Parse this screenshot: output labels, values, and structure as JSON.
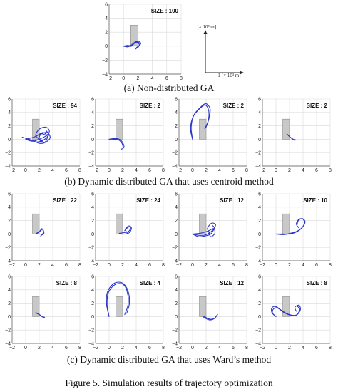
{
  "captions": {
    "a": "(a) Non-distributed GA",
    "b": "(b) Dynamic distributed GA that uses centroid method",
    "c": "(c) Dynamic distributed GA that uses Ward’s method",
    "figure": "Figure 5. Simulation results of trajectory optimization"
  },
  "axis_key": {
    "y_label": "η [× 10³ m]",
    "x_label": "ξ [× 10³ m]"
  },
  "colors": {
    "trajectory": "#2b35c8",
    "obstacle_fill": "#c8c8c8",
    "obstacle_stroke": "#8c8c8c",
    "grid": "#d9d9d9"
  },
  "chart_data": [
    {
      "id": "a",
      "type": "line",
      "title": "SIZE : 100",
      "xlim": [
        -2,
        8
      ],
      "ylim": [
        -4,
        6
      ],
      "grid": true,
      "xticks": [
        -2,
        0,
        2,
        4,
        6,
        8
      ],
      "yticks": [
        -4,
        -2,
        0,
        2,
        4,
        6
      ],
      "obstacle": {
        "x": [
          1,
          2
        ],
        "y": [
          0,
          3
        ]
      },
      "series": [
        {
          "x": [
            0.0,
            0.5,
            1.0,
            1.5,
            2.0,
            2.3,
            2.1,
            1.7
          ],
          "y": [
            0.0,
            0.1,
            0.1,
            0.5,
            0.6,
            0.3,
            0.0,
            -0.4
          ]
        },
        {
          "x": [
            0.0,
            0.6,
            1.2,
            1.6,
            2.1,
            2.4,
            2.2,
            1.8
          ],
          "y": [
            0.0,
            -0.1,
            0.2,
            0.6,
            0.7,
            0.4,
            0.1,
            -0.2
          ]
        },
        {
          "x": [
            0.0,
            0.5,
            1.1,
            1.5,
            1.9,
            2.2,
            2.0
          ],
          "y": [
            0.0,
            0.0,
            0.0,
            0.4,
            0.5,
            0.2,
            -0.2
          ]
        }
      ]
    },
    {
      "id": "b1",
      "type": "line",
      "title": "SIZE : 94",
      "xlim": [
        -2,
        8
      ],
      "ylim": [
        -4,
        6
      ],
      "grid": true,
      "xticks": [
        -2,
        0,
        2,
        4,
        6,
        8
      ],
      "yticks": [
        -4,
        -2,
        0,
        2,
        4,
        6
      ],
      "obstacle": {
        "x": [
          1,
          2
        ],
        "y": [
          0,
          3
        ]
      },
      "series": [
        {
          "x": [
            0.0,
            1.0,
            2.0,
            3.0,
            3.5,
            3.0,
            2.0,
            1.5,
            2.5
          ],
          "y": [
            0.0,
            -0.3,
            0.0,
            0.5,
            1.2,
            1.8,
            1.5,
            0.5,
            -0.3
          ]
        },
        {
          "x": [
            0.0,
            1.2,
            2.2,
            3.2,
            3.6,
            2.8,
            2.0,
            2.3,
            3.0
          ],
          "y": [
            0.0,
            0.3,
            0.8,
            1.0,
            0.2,
            -0.5,
            0.0,
            0.8,
            0.6
          ]
        },
        {
          "x": [
            0.0,
            1.0,
            2.0,
            2.8,
            3.2,
            2.6,
            1.8
          ],
          "y": [
            0.0,
            -0.2,
            -0.6,
            -0.5,
            0.4,
            1.0,
            0.6
          ]
        },
        {
          "x": [
            -0.5,
            0.5,
            1.5,
            2.5,
            3.4,
            3.0
          ],
          "y": [
            0.3,
            0.0,
            -0.4,
            -0.2,
            0.6,
            1.3
          ]
        }
      ]
    },
    {
      "id": "b2",
      "type": "line",
      "title": "SIZE : 2",
      "xlim": [
        -2,
        8
      ],
      "ylim": [
        -4,
        6
      ],
      "grid": true,
      "xticks": [
        -2,
        0,
        2,
        4,
        6,
        8
      ],
      "yticks": [
        -4,
        -2,
        0,
        2,
        4,
        6
      ],
      "obstacle": {
        "x": [
          1,
          2
        ],
        "y": [
          0,
          3
        ]
      },
      "series": [
        {
          "x": [
            0.0,
            0.8,
            1.5,
            2.0,
            2.2,
            1.8
          ],
          "y": [
            0.0,
            0.1,
            0.0,
            -0.5,
            -1.2,
            -1.5
          ]
        },
        {
          "x": [
            0.0,
            0.7,
            1.4,
            1.9,
            2.1
          ],
          "y": [
            0.0,
            0.0,
            -0.1,
            -0.6,
            -1.3
          ]
        }
      ]
    },
    {
      "id": "b3",
      "type": "line",
      "title": "SIZE : 2",
      "xlim": [
        -2,
        8
      ],
      "ylim": [
        -4,
        6
      ],
      "grid": true,
      "xticks": [
        -2,
        0,
        2,
        4,
        6,
        8
      ],
      "yticks": [
        -4,
        -2,
        0,
        2,
        4,
        6
      ],
      "obstacle": {
        "x": [
          1,
          2
        ],
        "y": [
          0,
          3
        ]
      },
      "series": [
        {
          "x": [
            0.0,
            -0.2,
            0.2,
            1.2,
            2.0,
            2.6,
            2.4,
            2.0
          ],
          "y": [
            0.0,
            1.8,
            3.6,
            4.8,
            5.3,
            4.5,
            3.0,
            1.8
          ]
        },
        {
          "x": [
            0.0,
            -0.3,
            0.1,
            1.1,
            1.9,
            2.4,
            2.3,
            1.8
          ],
          "y": [
            0.0,
            1.6,
            3.4,
            4.6,
            5.1,
            4.2,
            2.7,
            1.6
          ]
        }
      ]
    },
    {
      "id": "b4",
      "type": "line",
      "title": "SIZE : 2",
      "xlim": [
        -2,
        8
      ],
      "ylim": [
        -4,
        6
      ],
      "grid": true,
      "xticks": [
        -2,
        0,
        2,
        4,
        6,
        8
      ],
      "yticks": [
        -4,
        -2,
        0,
        2,
        4,
        6
      ],
      "obstacle": {
        "x": [
          1,
          2
        ],
        "y": [
          0,
          3
        ]
      },
      "series": [
        {
          "x": [
            1.6,
            2.0,
            2.4,
            2.8
          ],
          "y": [
            0.8,
            0.4,
            0.1,
            -0.2
          ]
        },
        {
          "x": [
            1.7,
            2.1,
            2.5,
            2.9
          ],
          "y": [
            0.7,
            0.3,
            0.0,
            -0.1
          ]
        }
      ]
    },
    {
      "id": "c1",
      "type": "line",
      "title": "SIZE : 22",
      "xlim": [
        -2,
        8
      ],
      "ylim": [
        -4,
        6
      ],
      "grid": true,
      "xticks": [
        -2,
        0,
        2,
        4,
        6,
        8
      ],
      "yticks": [
        -4,
        -2,
        0,
        2,
        4,
        6
      ],
      "obstacle": {
        "x": [
          1,
          2
        ],
        "y": [
          0,
          3
        ]
      },
      "series": [
        {
          "x": [
            1.5,
            2.0,
            2.4,
            2.6,
            2.2
          ],
          "y": [
            0.0,
            0.3,
            0.8,
            0.2,
            -0.3
          ]
        },
        {
          "x": [
            1.6,
            2.1,
            2.5,
            2.7,
            2.3
          ],
          "y": [
            0.1,
            0.4,
            0.7,
            0.1,
            -0.2
          ]
        }
      ]
    },
    {
      "id": "c2",
      "type": "line",
      "title": "SIZE : 24",
      "xlim": [
        -2,
        8
      ],
      "ylim": [
        -4,
        6
      ],
      "grid": true,
      "xticks": [
        -2,
        0,
        2,
        4,
        6,
        8
      ],
      "yticks": [
        -4,
        -2,
        0,
        2,
        4,
        6
      ],
      "obstacle": {
        "x": [
          1,
          2
        ],
        "y": [
          0,
          3
        ]
      },
      "series": [
        {
          "x": [
            1.5,
            2.3,
            3.0,
            3.3,
            2.9,
            2.4,
            2.7
          ],
          "y": [
            0.0,
            0.0,
            0.2,
            0.9,
            1.2,
            0.7,
            0.1
          ]
        },
        {
          "x": [
            1.5,
            2.2,
            2.9,
            3.2,
            2.8,
            2.3
          ],
          "y": [
            0.1,
            0.2,
            0.4,
            1.0,
            1.0,
            0.5
          ]
        }
      ]
    },
    {
      "id": "c3",
      "type": "line",
      "title": "SIZE : 12",
      "xlim": [
        -2,
        8
      ],
      "ylim": [
        -4,
        6
      ],
      "grid": true,
      "xticks": [
        -2,
        0,
        2,
        4,
        6,
        8
      ],
      "yticks": [
        -4,
        -2,
        0,
        2,
        4,
        6
      ],
      "obstacle": {
        "x": [
          1,
          2
        ],
        "y": [
          0,
          3
        ]
      },
      "series": [
        {
          "x": [
            0.0,
            1.0,
            2.0,
            3.0,
            3.4,
            2.8,
            2.2,
            2.6
          ],
          "y": [
            0.0,
            -0.2,
            -0.1,
            0.6,
            1.4,
            1.6,
            0.8,
            0.1
          ]
        },
        {
          "x": [
            0.0,
            1.1,
            2.2,
            3.1,
            3.3,
            2.7,
            2.4
          ],
          "y": [
            0.0,
            0.1,
            0.4,
            0.8,
            0.1,
            -0.4,
            0.3
          ]
        },
        {
          "x": [
            0.0,
            0.9,
            1.8,
            2.7,
            3.2,
            2.9
          ],
          "y": [
            0.0,
            -0.4,
            -0.3,
            0.0,
            0.9,
            1.3
          ]
        }
      ]
    },
    {
      "id": "c4",
      "type": "line",
      "title": "SIZE : 10",
      "xlim": [
        -2,
        8
      ],
      "ylim": [
        -4,
        6
      ],
      "grid": true,
      "xticks": [
        -2,
        0,
        2,
        4,
        6,
        8
      ],
      "yticks": [
        -4,
        -2,
        0,
        2,
        4,
        6
      ],
      "obstacle": {
        "x": [
          1,
          2
        ],
        "y": [
          0,
          3
        ]
      },
      "series": [
        {
          "x": [
            0.0,
            1.0,
            2.0,
            3.0,
            3.8,
            4.2,
            4.0,
            3.4,
            3.0,
            3.4
          ],
          "y": [
            0.0,
            0.0,
            0.0,
            0.3,
            0.9,
            1.6,
            2.2,
            2.2,
            1.5,
            0.9
          ]
        },
        {
          "x": [
            0.0,
            1.1,
            2.1,
            3.1,
            3.9,
            4.3,
            3.9,
            3.3,
            3.1
          ],
          "y": [
            0.0,
            -0.1,
            0.1,
            0.4,
            1.0,
            1.8,
            2.3,
            2.0,
            1.3
          ]
        }
      ]
    },
    {
      "id": "c5",
      "type": "line",
      "title": "SIZE : 8",
      "xlim": [
        -2,
        8
      ],
      "ylim": [
        -4,
        6
      ],
      "grid": true,
      "xticks": [
        -2,
        0,
        2,
        4,
        6,
        8
      ],
      "yticks": [
        -4,
        -2,
        0,
        2,
        4,
        6
      ],
      "obstacle": {
        "x": [
          1,
          2
        ],
        "y": [
          0,
          3
        ]
      },
      "series": [
        {
          "x": [
            1.5,
            1.9,
            2.3,
            2.7
          ],
          "y": [
            0.6,
            0.4,
            0.1,
            -0.2
          ]
        },
        {
          "x": [
            1.6,
            2.0,
            2.4,
            2.8
          ],
          "y": [
            0.5,
            0.3,
            0.0,
            -0.1
          ]
        }
      ]
    },
    {
      "id": "c6",
      "type": "line",
      "title": "SIZE : 4",
      "xlim": [
        -2,
        8
      ],
      "ylim": [
        -4,
        6
      ],
      "grid": true,
      "xticks": [
        -2,
        0,
        2,
        4,
        6,
        8
      ],
      "yticks": [
        -4,
        -2,
        0,
        2,
        4,
        6
      ],
      "obstacle": {
        "x": [
          1,
          2
        ],
        "y": [
          0,
          3
        ]
      },
      "series": [
        {
          "x": [
            0.0,
            -0.4,
            -0.2,
            0.8,
            2.0,
            2.8,
            3.0,
            2.6
          ],
          "y": [
            0.0,
            2.0,
            3.8,
            5.0,
            5.0,
            3.8,
            2.0,
            0.5
          ]
        },
        {
          "x": [
            0.0,
            -0.3,
            -0.1,
            0.9,
            2.1,
            2.7,
            2.8,
            2.3
          ],
          "y": [
            0.0,
            1.8,
            3.6,
            4.8,
            4.8,
            3.6,
            1.8,
            0.3
          ]
        }
      ]
    },
    {
      "id": "c7",
      "type": "line",
      "title": "SIZE : 12",
      "xlim": [
        -2,
        8
      ],
      "ylim": [
        -4,
        6
      ],
      "grid": true,
      "xticks": [
        -2,
        0,
        2,
        4,
        6,
        8
      ],
      "yticks": [
        -4,
        -2,
        0,
        2,
        4,
        6
      ],
      "obstacle": {
        "x": [
          1,
          2
        ],
        "y": [
          0,
          3
        ]
      },
      "series": [
        {
          "x": [
            1.5,
            2.0,
            2.6,
            3.2,
            3.6
          ],
          "y": [
            0.0,
            -0.3,
            -0.5,
            -0.3,
            0.2
          ]
        },
        {
          "x": [
            1.6,
            2.1,
            2.7,
            3.3,
            3.7
          ],
          "y": [
            0.1,
            -0.2,
            -0.4,
            -0.2,
            0.3
          ]
        }
      ]
    },
    {
      "id": "c8",
      "type": "line",
      "title": "SIZE : 8",
      "xlim": [
        -2,
        8
      ],
      "ylim": [
        -4,
        6
      ],
      "grid": true,
      "xticks": [
        -2,
        0,
        2,
        4,
        6,
        8
      ],
      "yticks": [
        -4,
        -2,
        0,
        2,
        4,
        6
      ],
      "obstacle": {
        "x": [
          1,
          2
        ],
        "y": [
          0,
          3
        ]
      },
      "series": [
        {
          "x": [
            0.0,
            -0.6,
            -0.6,
            0.0,
            1.0,
            2.0,
            3.0,
            3.6,
            3.4,
            2.8,
            3.0
          ],
          "y": [
            0.0,
            0.6,
            1.3,
            1.5,
            0.8,
            0.3,
            0.2,
            1.0,
            1.7,
            1.4,
            0.8
          ]
        },
        {
          "x": [
            0.0,
            -0.5,
            -0.4,
            0.2,
            1.2,
            2.2,
            3.1,
            3.5,
            3.2
          ],
          "y": [
            0.0,
            0.5,
            1.1,
            1.3,
            0.6,
            0.2,
            0.3,
            1.1,
            1.5
          ]
        }
      ]
    }
  ]
}
